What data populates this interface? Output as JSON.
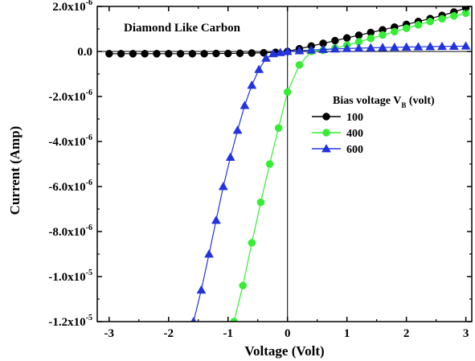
{
  "chart_data": {
    "type": "line",
    "annotation": "Diamond Like Carbon",
    "xlabel": "Voltage (Volt)",
    "ylabel": "Current (Amp)",
    "xlim": [
      -3.2,
      3.1
    ],
    "ylim": [
      -1.2e-05,
      2e-06
    ],
    "x_ticks": [
      -3,
      -2,
      -1,
      0,
      1,
      2,
      3
    ],
    "x_tick_labels": [
      "-3",
      "-2",
      "-1",
      "0",
      "1",
      "2",
      "3"
    ],
    "y_ticks": [
      {
        "value": 2e-06,
        "mantissa": "2.0x10",
        "exp": "-6"
      },
      {
        "value": 0,
        "mantissa": "0.0",
        "exp": ""
      },
      {
        "value": -2e-06,
        "mantissa": "-2.0x10",
        "exp": "-6"
      },
      {
        "value": -4e-06,
        "mantissa": "-4.0x10",
        "exp": "-6"
      },
      {
        "value": -6e-06,
        "mantissa": "-6.0x10",
        "exp": "-6"
      },
      {
        "value": -8e-06,
        "mantissa": "-8.0x10",
        "exp": "-6"
      },
      {
        "value": -1e-05,
        "mantissa": "-1.0x10",
        "exp": "-5"
      },
      {
        "value": -1.2e-05,
        "mantissa": "-1.2x10",
        "exp": "-5"
      }
    ],
    "legend_title": {
      "main": "Bias voltage V",
      "sub": "B",
      "tail": " (volt)"
    },
    "legend_position": "right, below top",
    "zero_lines": true,
    "series": [
      {
        "name": "100",
        "color": "#000000",
        "marker": "circle",
        "x": [
          -3.0,
          -2.8,
          -2.6,
          -2.4,
          -2.2,
          -2.0,
          -1.8,
          -1.6,
          -1.4,
          -1.2,
          -1.0,
          -0.8,
          -0.6,
          -0.4,
          -0.2,
          0.0,
          0.2,
          0.4,
          0.6,
          0.8,
          1.0,
          1.2,
          1.4,
          1.6,
          1.8,
          2.0,
          2.2,
          2.4,
          2.6,
          2.8,
          3.0
        ],
        "y": [
          -1e-07,
          -1e-07,
          -1e-07,
          -1e-07,
          -1e-07,
          -1e-07,
          -1e-07,
          -1e-07,
          -1e-07,
          -9e-08,
          -9e-08,
          -8e-08,
          -7e-08,
          -6e-08,
          -4e-08,
          0,
          1.2e-07,
          2.4e-07,
          3.6e-07,
          4.8e-07,
          6e-07,
          7.2e-07,
          8.4e-07,
          9.6e-07,
          1.08e-06,
          1.2e-06,
          1.33e-06,
          1.46e-06,
          1.6e-06,
          1.75e-06,
          1.93e-06
        ]
      },
      {
        "name": "400",
        "color": "#33ee33",
        "marker": "circle",
        "x": [
          -0.9,
          -0.75,
          -0.6,
          -0.45,
          -0.3,
          -0.15,
          0.0,
          0.2,
          0.4,
          0.6,
          0.8,
          1.0,
          1.2,
          1.4,
          1.6,
          1.8,
          2.0,
          2.2,
          2.4,
          2.6,
          2.8,
          3.0
        ],
        "y": [
          -1.2e-05,
          -1.04e-05,
          -8.5e-06,
          -6.7e-06,
          -5e-06,
          -3.4e-06,
          -1.8e-06,
          -6e-07,
          0,
          5e-08,
          1.5e-07,
          2.8e-07,
          4.3e-07,
          5.8e-07,
          7.3e-07,
          8.8e-07,
          1.03e-06,
          1.18e-06,
          1.33e-06,
          1.45e-06,
          1.58e-06,
          1.7e-06
        ]
      },
      {
        "name": "600",
        "color": "#2233dd",
        "marker": "triangle",
        "x": [
          -1.58,
          -1.45,
          -1.32,
          -1.2,
          -1.08,
          -0.96,
          -0.84,
          -0.72,
          -0.6,
          -0.48,
          -0.36,
          -0.24,
          -0.12,
          0.0,
          0.2,
          0.4,
          0.6,
          0.8,
          1.0,
          1.2,
          1.4,
          1.6,
          1.8,
          2.0,
          2.2,
          2.4,
          2.6,
          2.8,
          3.0
        ],
        "y": [
          -1.2e-05,
          -1.06e-05,
          -9e-06,
          -7.5e-06,
          -6e-06,
          -4.7e-06,
          -3.5e-06,
          -2.4e-06,
          -1.5e-06,
          -8e-07,
          -3e-07,
          -1e-07,
          -5e-08,
          0,
          3e-08,
          6e-08,
          9e-08,
          1.1e-07,
          1.3e-07,
          1.45e-07,
          1.6e-07,
          1.75e-07,
          1.85e-07,
          1.95e-07,
          2.05e-07,
          2.15e-07,
          2.25e-07,
          2.3e-07,
          2.4e-07
        ]
      }
    ]
  }
}
